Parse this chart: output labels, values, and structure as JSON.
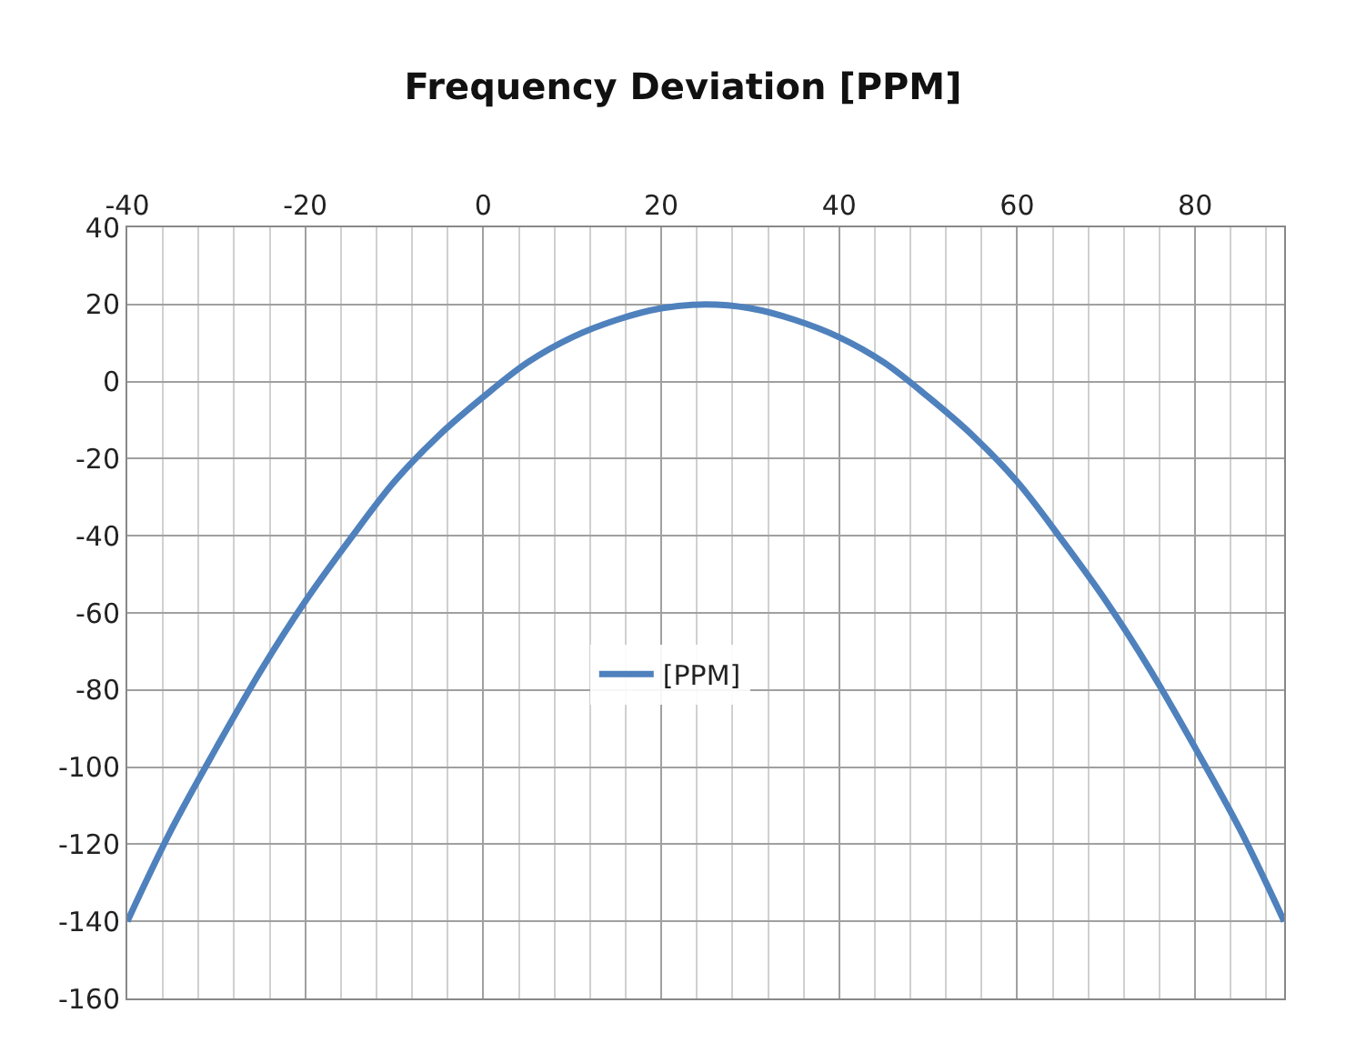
{
  "chart_data": {
    "type": "line",
    "title": "Frequency Deviation [PPM]",
    "x": [
      -40,
      -35,
      -30,
      -25,
      -20,
      -15,
      -10,
      -5,
      0,
      5,
      10,
      15,
      20,
      25,
      30,
      35,
      40,
      45,
      50,
      55,
      60,
      65,
      70,
      75,
      80,
      85,
      90
    ],
    "series": [
      {
        "name": "[PPM]",
        "color": "#4f81bd",
        "values": [
          -140,
          -116,
          -95,
          -75,
          -57,
          -41,
          -26,
          -14,
          -4,
          5,
          11.5,
          16,
          19,
          20,
          19,
          16,
          11.5,
          5,
          -4,
          -14,
          -26,
          -41,
          -57,
          -75,
          -95,
          -116,
          -140
        ]
      }
    ],
    "xlim": [
      -40,
      90
    ],
    "xticks": [
      -40,
      -20,
      0,
      20,
      40,
      60,
      80
    ],
    "ylim": [
      -160,
      40
    ],
    "yticks": [
      -160,
      -140,
      -120,
      -100,
      -80,
      -60,
      -40,
      -20,
      0,
      20,
      40
    ],
    "grid": true,
    "legend": "center",
    "marker": "none",
    "line_style": "solid"
  }
}
